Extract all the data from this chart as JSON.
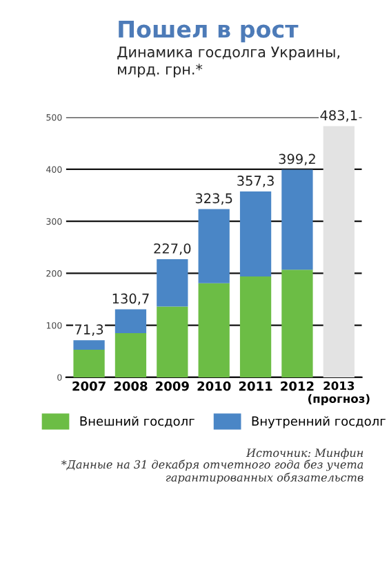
{
  "chart_data": {
    "type": "bar",
    "title": "Пошел в рост",
    "subtitle": "Динамика госдолга Украины,\nмлрд. грн.*",
    "categories": [
      "2007",
      "2008",
      "2009",
      "2010",
      "2011",
      "2012",
      "2013\n(прогноз)"
    ],
    "stacked": true,
    "series": [
      {
        "name": "Внешний госдолг",
        "color": "#6cbd45",
        "values": [
          53,
          85,
          136,
          181,
          194,
          207,
          null
        ]
      },
      {
        "name": "Внутренний госдолг",
        "color": "#4a86c6",
        "values": [
          18.3,
          45.7,
          91,
          142.5,
          163.3,
          192.2,
          null
        ]
      },
      {
        "color": "#e3e3e3",
        "values": [
          null,
          null,
          null,
          null,
          null,
          null,
          483.1
        ]
      }
    ],
    "totals": [
      "71,3",
      "130,7",
      "227,0",
      "323,5",
      "357,3",
      "399,2",
      "483,1"
    ],
    "ylim": [
      0,
      500
    ],
    "yticks": [
      0,
      100,
      200,
      300,
      400,
      500
    ],
    "grid": "y",
    "legend": "bottom",
    "annotations": [
      "Источник: Минфин",
      "*Данные на 31 декабря отчетного года без учета\nгарантированных обязательств"
    ]
  }
}
